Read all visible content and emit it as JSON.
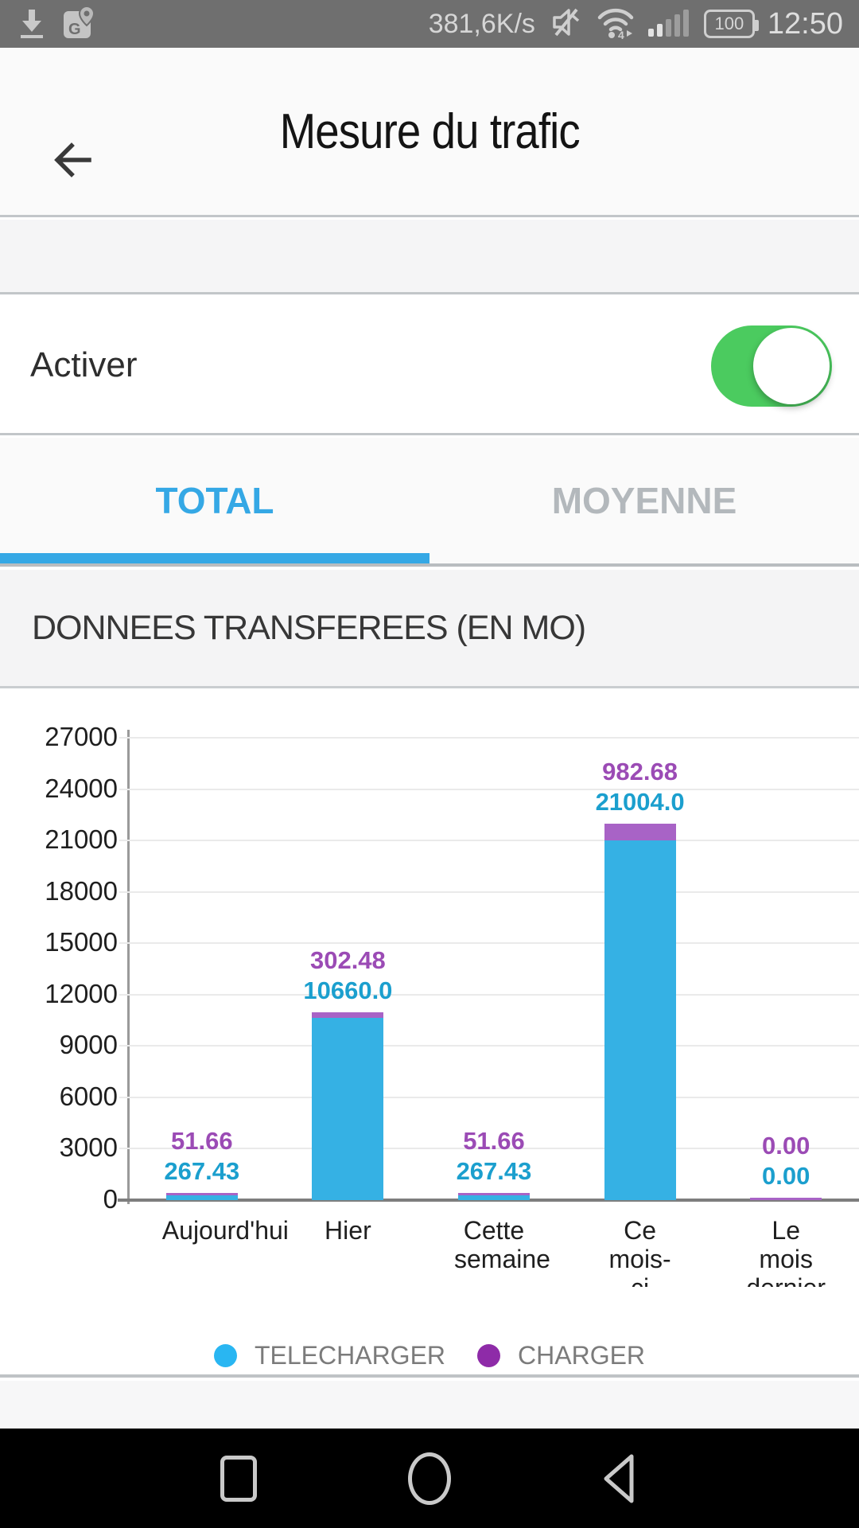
{
  "status_bar": {
    "net_speed": "381,6K/s",
    "battery_level": "100",
    "time": "12:50",
    "icons": [
      "download-icon",
      "maps-icon",
      "mute-icon",
      "wifi-icon",
      "signal-icon",
      "battery-icon"
    ]
  },
  "header": {
    "title": "Mesure du trafic"
  },
  "settings": {
    "enable_label": "Activer",
    "enabled": true
  },
  "tabs": [
    {
      "label": "TOTAL",
      "active": true
    },
    {
      "label": "MOYENNE",
      "active": false
    }
  ],
  "section": {
    "title": "DONNEES TRANSFEREES (EN MO)"
  },
  "chart_data": {
    "type": "bar",
    "stacked": true,
    "title": "DONNEES TRANSFEREES (EN MO)",
    "categories": [
      "Aujourd'hui",
      "Hier",
      "Cette semaine",
      "Ce mois-ci",
      "Le mois dernier"
    ],
    "series": [
      {
        "name": "TELECHARGER",
        "values": [
          267.43,
          10660.0,
          267.43,
          21004.0,
          0.0
        ],
        "value_labels": [
          "267.43",
          "10660.0",
          "267.43",
          "21004.0",
          "0.00"
        ],
        "color": "#35b1e4",
        "label_color": "#1b9fce"
      },
      {
        "name": "CHARGER",
        "values": [
          51.66,
          302.48,
          51.66,
          982.68,
          0.0
        ],
        "value_labels": [
          "51.66",
          "302.48",
          "51.66",
          "982.68",
          "0.00"
        ],
        "color": "#a863c6",
        "label_color": "#9b4bb5"
      }
    ],
    "ylim": [
      0,
      27000
    ],
    "ytick_step": 3000,
    "grid": true,
    "legend_position": "bottom",
    "legend": [
      {
        "label": "TELECHARGER",
        "color": "#29b6f2"
      },
      {
        "label": "CHARGER",
        "color": "#8e2ba8"
      }
    ]
  },
  "colors": {
    "accent_blue": "#35a8e5",
    "toggle_green": "#4bcb5f",
    "status_bar_bg": "#6f6f6f"
  }
}
